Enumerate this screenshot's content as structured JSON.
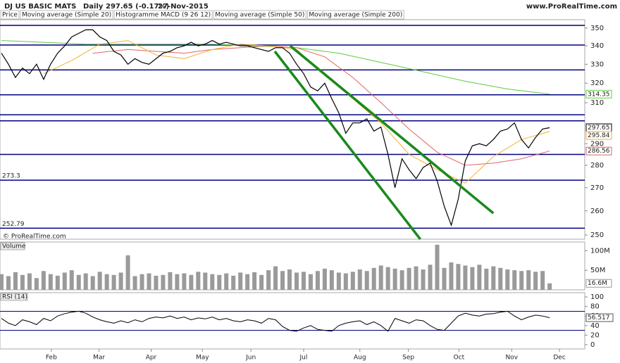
{
  "chart_data": [
    {
      "type": "line",
      "title": "DJ US BASIC MATS",
      "interval": "Daily",
      "last_change": "297.65 (-0.17%)",
      "date": "27-Nov-2015",
      "source": "www.ProRealTime.com",
      "copyright": "© ProRealTime.com",
      "log_scale": true,
      "xlim": [
        -0.2,
        83
      ],
      "ylim": [
        248.3,
        354.8
      ],
      "xticks": [
        {
          "value": 7.1,
          "label": "Feb"
        },
        {
          "value": 13.9,
          "label": "Mar"
        },
        {
          "value": 21.3,
          "label": "Apr"
        },
        {
          "value": 28.6,
          "label": "May"
        },
        {
          "value": 35.5,
          "label": "Jun"
        },
        {
          "value": 43,
          "label": "Jul"
        },
        {
          "value": 51,
          "label": "Aug"
        },
        {
          "value": 57.9,
          "label": "Sep"
        },
        {
          "value": 65.1,
          "label": "Oct"
        },
        {
          "value": 72.6,
          "label": "Nov"
        },
        {
          "value": 79.4,
          "label": "Dec"
        }
      ],
      "yticks": [
        250,
        260,
        270,
        280,
        290,
        310,
        320,
        330,
        340,
        350
      ],
      "indicator_labels": [
        "Histogramme MACD (9 26 12)"
      ],
      "series": [
        {
          "name": "Price",
          "color": "#000000",
          "values": [
            336,
            330,
            323,
            328,
            325,
            330,
            322,
            330,
            336,
            340,
            345,
            347,
            349,
            349,
            345,
            343,
            337,
            335,
            330,
            333,
            331,
            330,
            333,
            336,
            337,
            339,
            340,
            342,
            340,
            341,
            343,
            341,
            342,
            341,
            340,
            340,
            339,
            338,
            337,
            339,
            339,
            336,
            330,
            325,
            318,
            316,
            320,
            312,
            305,
            295,
            300,
            300,
            302,
            296,
            298,
            285,
            270,
            283,
            278,
            274,
            279,
            281,
            273,
            262,
            254,
            265,
            282,
            289,
            290,
            289,
            292,
            296,
            297,
            300,
            292,
            288,
            293,
            297,
            297.65
          ]
        },
        {
          "name": "Moving average (Simple 20)",
          "color": "#f2b134",
          "x": [
            6,
            10,
            14,
            18,
            22,
            26,
            30,
            34,
            38,
            42,
            46,
            50,
            54,
            58,
            62,
            66,
            70,
            74,
            78
          ],
          "values": [
            325,
            332,
            341,
            343,
            335,
            333,
            338,
            341,
            340,
            338,
            324,
            312,
            300,
            285,
            278,
            272,
            284,
            292,
            295.84
          ]
        },
        {
          "name": "Moving average (Simple 50)",
          "color": "#e06666",
          "x": [
            13,
            18,
            22,
            26,
            30,
            34,
            38,
            42,
            46,
            50,
            54,
            58,
            62,
            66,
            70,
            74,
            78
          ],
          "values": [
            336,
            338,
            337,
            336,
            338,
            339,
            340,
            339,
            334,
            323,
            310,
            297,
            286,
            280,
            281,
            283,
            286.56
          ]
        },
        {
          "name": "Moving average (Simple 200)",
          "color": "#5ccc3c",
          "x": [
            0,
            6,
            12,
            18,
            24,
            30,
            36,
            42,
            48,
            54,
            60,
            66,
            72,
            78
          ],
          "values": [
            343,
            342,
            341,
            341,
            341,
            341,
            340,
            339,
            336,
            331,
            326,
            321,
            317,
            314.35
          ]
        }
      ],
      "levels": [
        351.5,
        340.5,
        327,
        314,
        304,
        301,
        285,
        273.3,
        252.79
      ],
      "level_color": "#000080",
      "trendlines": [
        {
          "x": [
            38.9,
            59.6
          ],
          "values": [
            337,
            248.3
          ]
        },
        {
          "x": [
            41.1,
            70.0
          ],
          "values": [
            340,
            259
          ]
        }
      ],
      "trend_color": "#1a8a1a"
    },
    {
      "type": "bar",
      "title": "Volume",
      "color": "#9a9a9a",
      "ylim": [
        0,
        122
      ],
      "yticks": [
        {
          "value": 50,
          "label": "50M"
        },
        {
          "value": 100,
          "label": "100M"
        }
      ],
      "values": [
        40,
        35,
        45,
        38,
        42,
        30,
        48,
        40,
        36,
        44,
        50,
        38,
        42,
        35,
        46,
        40,
        38,
        44,
        88,
        35,
        40,
        42,
        36,
        38,
        45,
        40,
        42,
        38,
        46,
        44,
        40,
        38,
        42,
        36,
        44,
        40,
        45,
        38,
        50,
        60,
        48,
        52,
        44,
        46,
        40,
        48,
        54,
        50,
        44,
        42,
        46,
        52,
        48,
        56,
        62,
        58,
        54,
        50,
        56,
        60,
        52,
        64,
        115,
        56,
        70,
        66,
        62,
        58,
        64,
        54,
        60,
        56,
        52,
        50,
        48,
        50,
        46,
        48,
        16.6
      ],
      "value_labels": {
        "78": "16.6M"
      }
    },
    {
      "type": "line",
      "title": "RSI (14)",
      "color": "#000000",
      "ylim": [
        -9,
        109
      ],
      "yticks": [
        0,
        20,
        40,
        60,
        80,
        100
      ],
      "levels": [
        30,
        70
      ],
      "level_color": "#000080",
      "values": [
        55,
        45,
        40,
        52,
        48,
        42,
        55,
        50,
        60,
        65,
        68,
        70,
        66,
        58,
        52,
        48,
        45,
        50,
        46,
        52,
        48,
        55,
        58,
        56,
        60,
        55,
        58,
        52,
        56,
        54,
        58,
        52,
        55,
        50,
        48,
        52,
        50,
        45,
        55,
        52,
        38,
        30,
        28,
        35,
        40,
        32,
        30,
        28,
        40,
        45,
        48,
        50,
        42,
        48,
        40,
        28,
        55,
        50,
        45,
        52,
        50,
        40,
        32,
        30,
        45,
        60,
        66,
        62,
        60,
        64,
        65,
        68,
        70,
        60,
        52,
        58,
        62,
        60,
        56.517
      ]
    }
  ]
}
